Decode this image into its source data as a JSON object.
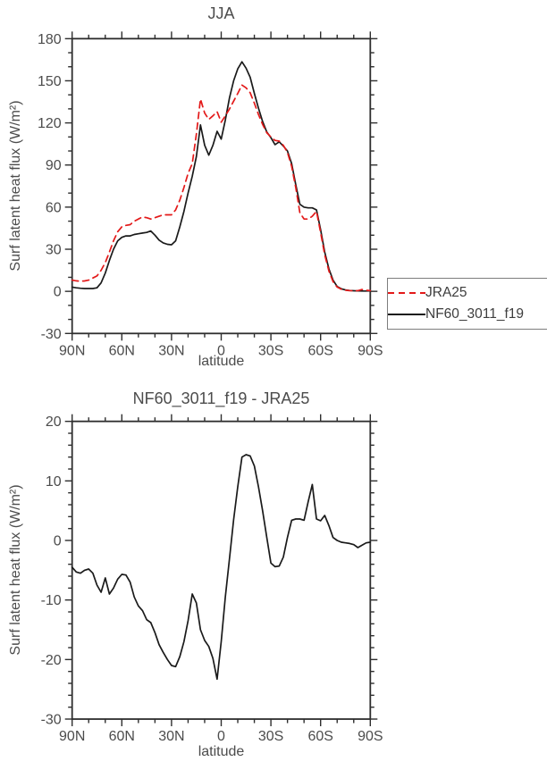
{
  "style": {
    "axis_color": "#2e2e2e",
    "label_color": "#4c4c4c",
    "red_series_color": "#e31919",
    "black_series_color": "#1a1a1a",
    "legend_border_color": "#7d7d7d"
  },
  "chart_data": [
    {
      "type": "line",
      "title": "JJA",
      "xlabel": "latitude",
      "ylabel": "Surf latent heat flux (W/m²)",
      "x_axis": {
        "range_deg": [
          90,
          -90
        ],
        "minor_step_deg": 10,
        "ticks": [
          {
            "lat": 90,
            "label": "90N"
          },
          {
            "lat": 60,
            "label": "60N"
          },
          {
            "lat": 30,
            "label": "30N"
          },
          {
            "lat": 0,
            "label": "0"
          },
          {
            "lat": -30,
            "label": "30S"
          },
          {
            "lat": -60,
            "label": "60S"
          },
          {
            "lat": -90,
            "label": "90S"
          }
        ]
      },
      "y_axis": {
        "min": -30,
        "max": 180,
        "major_step": 30,
        "minor_step": 10
      },
      "grid": false,
      "legend": {
        "position": "outside-right-bottom",
        "entries": [
          {
            "label": "JRA25",
            "style": "dashed",
            "color": "#e31919"
          },
          {
            "label": "NF60_3011_f19",
            "style": "solid",
            "color": "#1a1a1a"
          }
        ]
      },
      "series": [
        {
          "name": "NF60_3011_f19",
          "color": "#1a1a1a",
          "line_style": "solid",
          "points": [
            [
              90,
              3
            ],
            [
              87.5,
              2.5
            ],
            [
              85,
              2.2
            ],
            [
              82.5,
              2
            ],
            [
              80,
              2
            ],
            [
              77.5,
              2
            ],
            [
              75,
              2.5
            ],
            [
              72.5,
              6
            ],
            [
              70,
              13
            ],
            [
              67.5,
              22
            ],
            [
              65,
              30
            ],
            [
              62.5,
              36
            ],
            [
              60,
              38.5
            ],
            [
              57.5,
              39.5
            ],
            [
              55,
              39.5
            ],
            [
              52.5,
              40.5
            ],
            [
              50,
              41
            ],
            [
              47.5,
              41.5
            ],
            [
              45,
              42
            ],
            [
              42.5,
              43
            ],
            [
              40,
              40
            ],
            [
              37.5,
              36.5
            ],
            [
              35,
              34.5
            ],
            [
              32.5,
              33.5
            ],
            [
              30,
              33.2
            ],
            [
              27.5,
              36
            ],
            [
              25,
              46
            ],
            [
              22.5,
              57
            ],
            [
              20,
              70
            ],
            [
              17.5,
              82
            ],
            [
              15,
              96
            ],
            [
              12.5,
              118.5
            ],
            [
              10,
              104
            ],
            [
              7.5,
              97
            ],
            [
              5,
              104
            ],
            [
              2.5,
              114
            ],
            [
              0,
              108.5
            ],
            [
              -2.5,
              122
            ],
            [
              -5,
              138
            ],
            [
              -7.5,
              150
            ],
            [
              -10,
              158.5
            ],
            [
              -12.5,
              163.5
            ],
            [
              -15,
              159
            ],
            [
              -17.5,
              152.5
            ],
            [
              -20,
              141
            ],
            [
              -22.5,
              130.5
            ],
            [
              -25,
              121
            ],
            [
              -27.5,
              113.5
            ],
            [
              -30,
              109.5
            ],
            [
              -32.5,
              104.5
            ],
            [
              -35,
              106.5
            ],
            [
              -37.5,
              103.5
            ],
            [
              -40,
              100
            ],
            [
              -42.5,
              91
            ],
            [
              -45,
              76
            ],
            [
              -47.5,
              62
            ],
            [
              -50,
              60
            ],
            [
              -52.5,
              59.5
            ],
            [
              -55,
              59.5
            ],
            [
              -57.5,
              58
            ],
            [
              -60,
              44
            ],
            [
              -62.5,
              28
            ],
            [
              -65,
              16
            ],
            [
              -67.5,
              8
            ],
            [
              -70,
              3.5
            ],
            [
              -72.5,
              1.8
            ],
            [
              -75,
              1
            ],
            [
              -77.5,
              0.6
            ],
            [
              -80,
              0.4
            ],
            [
              -82.5,
              0.3
            ],
            [
              -85,
              0.2
            ],
            [
              -87.5,
              0.2
            ],
            [
              -90,
              0.3
            ]
          ]
        },
        {
          "name": "JRA25",
          "color": "#e31919",
          "line_style": "dashed",
          "points": [
            [
              90,
              8
            ],
            [
              87.5,
              7.5
            ],
            [
              85,
              7.2
            ],
            [
              82.5,
              7.4
            ],
            [
              80,
              8
            ],
            [
              77.5,
              9.5
            ],
            [
              75,
              11
            ],
            [
              72.5,
              15
            ],
            [
              70,
              20.5
            ],
            [
              67.5,
              28
            ],
            [
              65,
              36
            ],
            [
              62.5,
              42.5
            ],
            [
              60,
              46
            ],
            [
              57.5,
              47
            ],
            [
              55,
              47.5
            ],
            [
              52.5,
              50
            ],
            [
              50,
              51.5
            ],
            [
              47.5,
              53
            ],
            [
              45,
              52.5
            ],
            [
              42.5,
              51.5
            ],
            [
              40,
              52.5
            ],
            [
              37.5,
              53.5
            ],
            [
              35,
              54.5
            ],
            [
              32.5,
              54.5
            ],
            [
              30,
              54.5
            ],
            [
              27.5,
              58
            ],
            [
              25,
              65
            ],
            [
              22.5,
              74
            ],
            [
              20,
              84
            ],
            [
              17.5,
              91
            ],
            [
              15,
              112
            ],
            [
              12.5,
              137
            ],
            [
              10,
              127
            ],
            [
              7.5,
              122.5
            ],
            [
              5,
              125
            ],
            [
              2.5,
              128
            ],
            [
              0,
              120.5
            ],
            [
              -2.5,
              125
            ],
            [
              -5,
              130
            ],
            [
              -7.5,
              135.5
            ],
            [
              -10,
              141
            ],
            [
              -12.5,
              147
            ],
            [
              -15,
              145
            ],
            [
              -17.5,
              141.5
            ],
            [
              -20,
              134
            ],
            [
              -22.5,
              126
            ],
            [
              -25,
              119
            ],
            [
              -27.5,
              113
            ],
            [
              -30,
              110
            ],
            [
              -32.5,
              107.5
            ],
            [
              -35,
              107
            ],
            [
              -37.5,
              104
            ],
            [
              -40,
              99
            ],
            [
              -42.5,
              89
            ],
            [
              -45,
              74
            ],
            [
              -47.5,
              56
            ],
            [
              -50,
              51.5
            ],
            [
              -52.5,
              51.5
            ],
            [
              -55,
              53.5
            ],
            [
              -57.5,
              57
            ],
            [
              -60,
              42
            ],
            [
              -62.5,
              26
            ],
            [
              -65,
              14.5
            ],
            [
              -67.5,
              7
            ],
            [
              -70,
              3
            ],
            [
              -72.5,
              1.5
            ],
            [
              -75,
              0.8
            ],
            [
              -77.5,
              0.5
            ],
            [
              -80,
              0.4
            ],
            [
              -82.5,
              0.5
            ],
            [
              -85,
              1.3
            ],
            [
              -87.5,
              0.8
            ],
            [
              -90,
              0.5
            ]
          ]
        }
      ]
    },
    {
      "type": "line",
      "title": "NF60_3011_f19 - JRA25",
      "xlabel": "latitude",
      "ylabel": "Surf latent heat flux (W/m²)",
      "x_axis": {
        "range_deg": [
          90,
          -90
        ],
        "minor_step_deg": 10,
        "ticks": [
          {
            "lat": 90,
            "label": "90N"
          },
          {
            "lat": 60,
            "label": "60N"
          },
          {
            "lat": 30,
            "label": "30N"
          },
          {
            "lat": 0,
            "label": "0"
          },
          {
            "lat": -30,
            "label": "30S"
          },
          {
            "lat": -60,
            "label": "60S"
          },
          {
            "lat": -90,
            "label": "90S"
          }
        ]
      },
      "y_axis": {
        "min": -30,
        "max": 20,
        "major_step": 10,
        "minor_step": 2
      },
      "grid": false,
      "series": [
        {
          "name": "NF60_3011_f19 - JRA25",
          "color": "#1a1a1a",
          "line_style": "solid",
          "points": [
            [
              90,
              -4.5
            ],
            [
              87.5,
              -5.3
            ],
            [
              85,
              -5.5
            ],
            [
              82.5,
              -5
            ],
            [
              80,
              -4.8
            ],
            [
              77.5,
              -5.5
            ],
            [
              75,
              -7.5
            ],
            [
              72.5,
              -8.7
            ],
            [
              70,
              -6.3
            ],
            [
              67.5,
              -9
            ],
            [
              65,
              -8
            ],
            [
              62.5,
              -6.5
            ],
            [
              60,
              -5.7
            ],
            [
              57.5,
              -5.8
            ],
            [
              55,
              -7
            ],
            [
              52.5,
              -9.5
            ],
            [
              50,
              -11
            ],
            [
              47.5,
              -11.8
            ],
            [
              45,
              -13.3
            ],
            [
              42.5,
              -13.8
            ],
            [
              40,
              -15.5
            ],
            [
              37.5,
              -17.5
            ],
            [
              35,
              -18.8
            ],
            [
              32.5,
              -20
            ],
            [
              30,
              -21
            ],
            [
              27.5,
              -21.2
            ],
            [
              25,
              -19.5
            ],
            [
              22.5,
              -17
            ],
            [
              20,
              -13.5
            ],
            [
              17.5,
              -9
            ],
            [
              15,
              -10.5
            ],
            [
              12.5,
              -15
            ],
            [
              10,
              -16.8
            ],
            [
              7.5,
              -17.8
            ],
            [
              5,
              -19.8
            ],
            [
              2.5,
              -23.3
            ],
            [
              0,
              -17
            ],
            [
              -2.5,
              -9.5
            ],
            [
              -5,
              -3
            ],
            [
              -7.5,
              3.5
            ],
            [
              -10,
              9
            ],
            [
              -12.5,
              14
            ],
            [
              -15,
              14.4
            ],
            [
              -17.5,
              14.2
            ],
            [
              -20,
              12.5
            ],
            [
              -22.5,
              9
            ],
            [
              -25,
              5
            ],
            [
              -27.5,
              0.5
            ],
            [
              -30,
              -3.8
            ],
            [
              -32.5,
              -4.4
            ],
            [
              -35,
              -4.3
            ],
            [
              -37.5,
              -2.8
            ],
            [
              -40,
              0.5
            ],
            [
              -42.5,
              3.4
            ],
            [
              -45,
              3.6
            ],
            [
              -47.5,
              3.6
            ],
            [
              -50,
              3.4
            ],
            [
              -52.5,
              6.5
            ],
            [
              -55,
              9.4
            ],
            [
              -57.5,
              3.6
            ],
            [
              -60,
              3.3
            ],
            [
              -62.5,
              4.2
            ],
            [
              -65,
              2.5
            ],
            [
              -67.5,
              0.5
            ],
            [
              -70,
              0
            ],
            [
              -72.5,
              -0.3
            ],
            [
              -75,
              -0.4
            ],
            [
              -77.5,
              -0.5
            ],
            [
              -80,
              -0.7
            ],
            [
              -82.5,
              -1.2
            ],
            [
              -85,
              -0.8
            ],
            [
              -87.5,
              -0.4
            ],
            [
              -90,
              -0.3
            ]
          ]
        }
      ]
    }
  ]
}
